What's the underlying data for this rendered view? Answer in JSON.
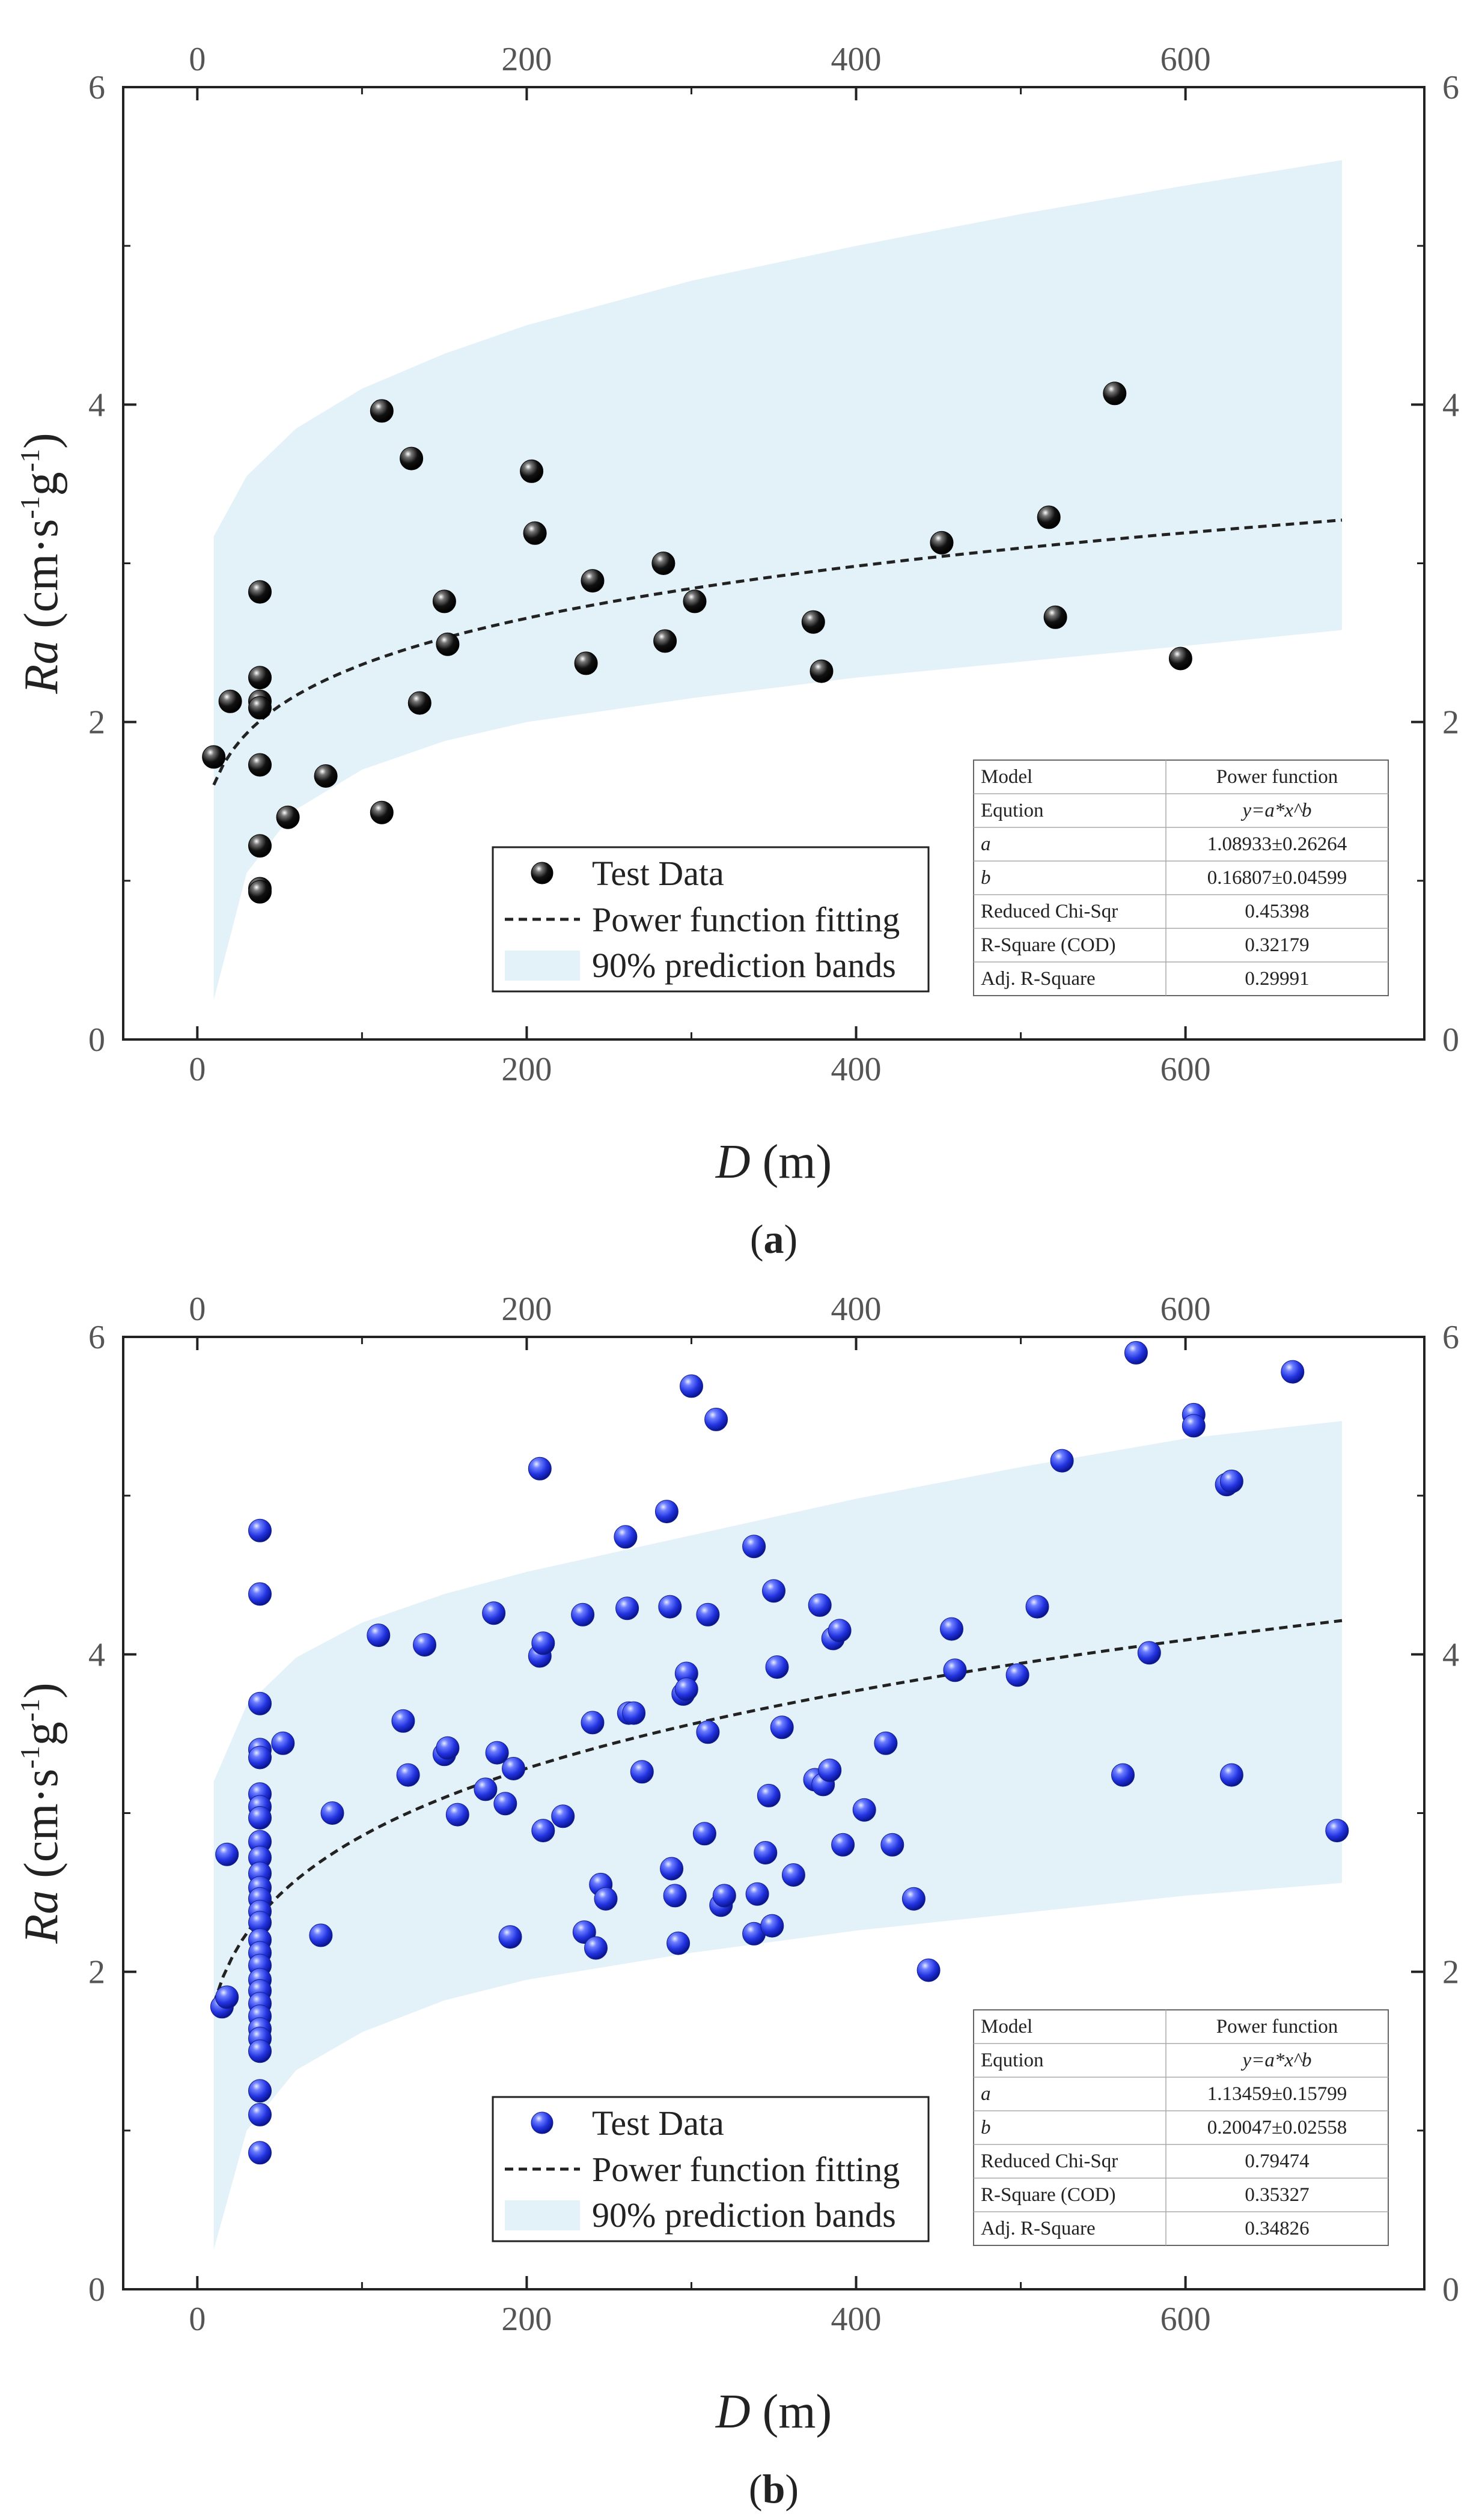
{
  "chart_data": [
    {
      "type": "scatter",
      "panel_label": "a",
      "xlabel_var": "D",
      "xlabel_unit": "(m)",
      "ylabel_var": "Ra",
      "ylabel_unit_pre": "(cm·s",
      "ylabel_sup1": "-1",
      "ylabel_mid": "g",
      "ylabel_sup2": "-1",
      "ylabel_close": ")",
      "xlim": [
        -45,
        745
      ],
      "ylim": [
        0,
        6
      ],
      "xticks": [
        0,
        200,
        400,
        600
      ],
      "yticks": [
        0,
        2,
        4,
        6
      ],
      "fit": {
        "a": 1.08933,
        "b": 0.16807,
        "x_range": [
          10,
          695
        ]
      },
      "band_lower": [
        [
          10,
          0.25
        ],
        [
          30,
          1.05
        ],
        [
          60,
          1.45
        ],
        [
          100,
          1.7
        ],
        [
          150,
          1.88
        ],
        [
          200,
          2.0
        ],
        [
          300,
          2.15
        ],
        [
          400,
          2.28
        ],
        [
          500,
          2.38
        ],
        [
          600,
          2.48
        ],
        [
          695,
          2.58
        ]
      ],
      "band_upper": [
        [
          10,
          3.17
        ],
        [
          30,
          3.55
        ],
        [
          60,
          3.85
        ],
        [
          100,
          4.1
        ],
        [
          150,
          4.32
        ],
        [
          200,
          4.5
        ],
        [
          300,
          4.78
        ],
        [
          400,
          5.0
        ],
        [
          500,
          5.2
        ],
        [
          600,
          5.38
        ],
        [
          695,
          5.54
        ]
      ],
      "legend": {
        "points": "Test Data",
        "fit": "Power function fitting",
        "band": "90% prediction bands"
      },
      "table": {
        "rows": [
          [
            "Model",
            "Power function"
          ],
          [
            "Eqution",
            "y=a*x^b"
          ],
          [
            "a",
            "1.08933±0.26264"
          ],
          [
            "b",
            "0.16807±0.04599"
          ],
          [
            "Reduced Chi-Sqr",
            "0.45398"
          ],
          [
            "R-Square (COD)",
            "0.32179"
          ],
          [
            "Adj. R-Square",
            "0.29991"
          ]
        ]
      },
      "point_color": "#111111",
      "points": [
        [
          10,
          1.78
        ],
        [
          20,
          2.13
        ],
        [
          38,
          2.82
        ],
        [
          38,
          2.28
        ],
        [
          38,
          2.13
        ],
        [
          38,
          2.09
        ],
        [
          38,
          1.73
        ],
        [
          38,
          1.22
        ],
        [
          38,
          0.95
        ],
        [
          38,
          0.93
        ],
        [
          55,
          1.4
        ],
        [
          78,
          1.66
        ],
        [
          112,
          3.96
        ],
        [
          112,
          1.43
        ],
        [
          130,
          3.66
        ],
        [
          135,
          2.12
        ],
        [
          150,
          2.76
        ],
        [
          152,
          2.49
        ],
        [
          203,
          3.58
        ],
        [
          205,
          3.19
        ],
        [
          236,
          2.37
        ],
        [
          240,
          2.89
        ],
        [
          283,
          3.0
        ],
        [
          284,
          2.51
        ],
        [
          302,
          2.76
        ],
        [
          374,
          2.63
        ],
        [
          379,
          2.32
        ],
        [
          452,
          3.13
        ],
        [
          517,
          3.29
        ],
        [
          521,
          2.66
        ],
        [
          557,
          4.07
        ],
        [
          597,
          2.4
        ]
      ]
    },
    {
      "type": "scatter",
      "panel_label": "b",
      "xlabel_var": "D",
      "xlabel_unit": "(m)",
      "ylabel_var": "Ra",
      "ylabel_unit_pre": "(cm·s",
      "ylabel_sup1": "-1",
      "ylabel_mid": "g",
      "ylabel_sup2": "-1",
      "ylabel_close": ")",
      "xlim": [
        -45,
        745
      ],
      "ylim": [
        0,
        6
      ],
      "xticks": [
        0,
        200,
        400,
        600
      ],
      "yticks": [
        0,
        2,
        4,
        6
      ],
      "fit": {
        "a": 1.13459,
        "b": 0.20047,
        "x_range": [
          10,
          695
        ]
      },
      "band_lower": [
        [
          10,
          0.25
        ],
        [
          30,
          1.0
        ],
        [
          60,
          1.38
        ],
        [
          100,
          1.62
        ],
        [
          150,
          1.82
        ],
        [
          200,
          1.95
        ],
        [
          300,
          2.12
        ],
        [
          400,
          2.26
        ],
        [
          500,
          2.37
        ],
        [
          600,
          2.48
        ],
        [
          695,
          2.56
        ]
      ],
      "band_upper": [
        [
          10,
          3.2
        ],
        [
          30,
          3.68
        ],
        [
          60,
          3.98
        ],
        [
          100,
          4.2
        ],
        [
          150,
          4.38
        ],
        [
          200,
          4.52
        ],
        [
          300,
          4.75
        ],
        [
          400,
          4.98
        ],
        [
          500,
          5.18
        ],
        [
          600,
          5.36
        ],
        [
          695,
          5.47
        ]
      ],
      "legend": {
        "points": "Test Data",
        "fit": "Power function fitting",
        "band": "90% prediction bands"
      },
      "table": {
        "rows": [
          [
            "Model",
            "Power function"
          ],
          [
            "Eqution",
            "y=a*x^b"
          ],
          [
            "a",
            "1.13459±0.15799"
          ],
          [
            "b",
            "0.20047±0.02558"
          ],
          [
            "Reduced Chi-Sqr",
            "0.79474"
          ],
          [
            "R-Square (COD)",
            "0.35327"
          ],
          [
            "Adj. R-Square",
            "0.34826"
          ]
        ]
      },
      "point_color": "#2d3ff0",
      "points": [
        [
          15,
          1.78
        ],
        [
          18,
          1.84
        ],
        [
          18,
          2.74
        ],
        [
          38,
          4.78
        ],
        [
          38,
          4.38
        ],
        [
          38,
          3.69
        ],
        [
          38,
          3.4
        ],
        [
          38,
          3.35
        ],
        [
          38,
          3.12
        ],
        [
          38,
          3.04
        ],
        [
          38,
          2.97
        ],
        [
          38,
          2.82
        ],
        [
          38,
          2.72
        ],
        [
          38,
          2.62
        ],
        [
          38,
          2.53
        ],
        [
          38,
          2.46
        ],
        [
          38,
          2.38
        ],
        [
          38,
          2.31
        ],
        [
          38,
          2.2
        ],
        [
          38,
          2.12
        ],
        [
          38,
          2.04
        ],
        [
          38,
          1.95
        ],
        [
          38,
          1.88
        ],
        [
          38,
          1.8
        ],
        [
          38,
          1.72
        ],
        [
          38,
          1.64
        ],
        [
          38,
          1.58
        ],
        [
          38,
          1.5
        ],
        [
          38,
          1.25
        ],
        [
          38,
          1.1
        ],
        [
          38,
          0.86
        ],
        [
          52,
          3.44
        ],
        [
          75,
          2.23
        ],
        [
          82,
          3.0
        ],
        [
          110,
          4.12
        ],
        [
          125,
          3.58
        ],
        [
          128,
          3.24
        ],
        [
          138,
          4.06
        ],
        [
          150,
          3.37
        ],
        [
          152,
          3.41
        ],
        [
          158,
          2.99
        ],
        [
          175,
          3.15
        ],
        [
          180,
          4.26
        ],
        [
          182,
          3.38
        ],
        [
          187,
          3.06
        ],
        [
          190,
          2.22
        ],
        [
          192,
          3.28
        ],
        [
          208,
          5.17
        ],
        [
          208,
          3.99
        ],
        [
          210,
          4.07
        ],
        [
          210,
          2.89
        ],
        [
          222,
          2.98
        ],
        [
          234,
          4.25
        ],
        [
          235,
          2.25
        ],
        [
          240,
          3.57
        ],
        [
          242,
          2.15
        ],
        [
          245,
          2.55
        ],
        [
          248,
          2.46
        ],
        [
          260,
          4.74
        ],
        [
          261,
          4.29
        ],
        [
          262,
          3.63
        ],
        [
          265,
          3.63
        ],
        [
          270,
          3.26
        ],
        [
          285,
          4.9
        ],
        [
          287,
          4.3
        ],
        [
          288,
          2.65
        ],
        [
          290,
          2.48
        ],
        [
          292,
          2.18
        ],
        [
          295,
          3.75
        ],
        [
          297,
          3.88
        ],
        [
          297,
          3.78
        ],
        [
          300,
          5.69
        ],
        [
          308,
          2.87
        ],
        [
          310,
          4.25
        ],
        [
          310,
          3.51
        ],
        [
          315,
          5.48
        ],
        [
          318,
          2.42
        ],
        [
          320,
          2.48
        ],
        [
          338,
          4.68
        ],
        [
          338,
          2.24
        ],
        [
          340,
          2.49
        ],
        [
          345,
          2.75
        ],
        [
          347,
          3.11
        ],
        [
          349,
          2.29
        ],
        [
          350,
          4.4
        ],
        [
          352,
          3.92
        ],
        [
          355,
          3.54
        ],
        [
          362,
          2.61
        ],
        [
          375,
          3.21
        ],
        [
          378,
          4.31
        ],
        [
          380,
          3.18
        ],
        [
          384,
          3.27
        ],
        [
          386,
          4.1
        ],
        [
          390,
          4.15
        ],
        [
          392,
          2.8
        ],
        [
          405,
          3.02
        ],
        [
          418,
          3.44
        ],
        [
          422,
          2.8
        ],
        [
          435,
          2.46
        ],
        [
          444,
          2.01
        ],
        [
          458,
          4.16
        ],
        [
          460,
          3.9
        ],
        [
          498,
          3.87
        ],
        [
          510,
          4.3
        ],
        [
          525,
          5.22
        ],
        [
          562,
          3.24
        ],
        [
          570,
          5.9
        ],
        [
          578,
          4.01
        ],
        [
          605,
          5.51
        ],
        [
          605,
          5.44
        ],
        [
          625,
          5.07
        ],
        [
          628,
          5.09
        ],
        [
          628,
          3.24
        ],
        [
          665,
          5.78
        ],
        [
          692,
          2.89
        ]
      ]
    }
  ]
}
